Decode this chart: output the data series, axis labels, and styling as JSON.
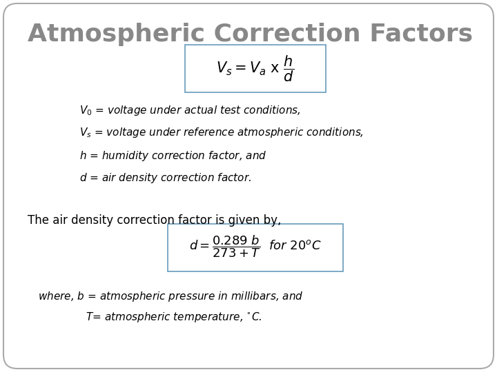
{
  "title": "Atmospheric Correction Factors",
  "title_color": "#888888",
  "title_fontsize": 26,
  "bg_color": "#ffffff",
  "border_color": "#aaaaaa",
  "box_color": "#6699bb",
  "bullet_lines": [
    "$V_0$ = voltage under actual test conditions,",
    "$V_s$ = voltage under reference atmospheric conditions,",
    "$h$ = humidity correction factor, and",
    "$d$ = air density correction factor."
  ],
  "middle_text": "The air density correction factor is given by,",
  "bottom_line1": "where, $b$ = atmospheric pressure in millibars, and",
  "bottom_line2": "      $T$= atmospheric temperature, $^{\\circ}C$.",
  "formula1": "$V_s = V_a\\ \\mathrm{x}\\ \\dfrac{h}{d}$",
  "formula2": "$d = \\dfrac{0.289\\ b}{273 + T}\\ \\ \\mathit{for}\\ 20^{o}C$"
}
